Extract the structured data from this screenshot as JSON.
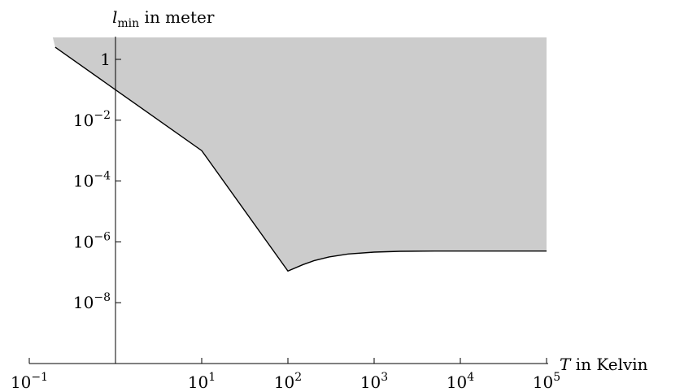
{
  "chart_data": {
    "type": "area",
    "x_scale": "log",
    "y_scale": "log",
    "xlim": [
      0.1,
      100000
    ],
    "ylim": [
      1e-10,
      3
    ],
    "x_ticks": [
      {
        "base": "10",
        "exp": "−1",
        "value": 0.1
      },
      {
        "base": "10",
        "exp": "1",
        "value": 10
      },
      {
        "base": "10",
        "exp": "2",
        "value": 100
      },
      {
        "base": "10",
        "exp": "3",
        "value": 1000
      },
      {
        "base": "10",
        "exp": "4",
        "value": 10000
      },
      {
        "base": "10",
        "exp": "5",
        "value": 100000
      }
    ],
    "y_ticks": [
      {
        "base": "1",
        "exp": "",
        "value": 1
      },
      {
        "base": "10",
        "exp": "−2",
        "value": 0.01
      },
      {
        "base": "10",
        "exp": "−4",
        "value": 0.0001
      },
      {
        "base": "10",
        "exp": "−6",
        "value": 1e-06
      },
      {
        "base": "10",
        "exp": "−8",
        "value": 1e-08
      }
    ],
    "y_axis_at_x": 1,
    "x_axis_at_y": 1e-10,
    "ylabel_var": "l",
    "ylabel_sub": "min",
    "ylabel_rest": " in meter",
    "xlabel_var": "T",
    "xlabel_rest": " in Kelvin",
    "grid": false,
    "fill_color": "#cccccc",
    "line_color": "#000000",
    "series": [
      {
        "x": [
          0.2,
          1,
          10,
          100,
          150,
          200,
          300,
          500,
          1000,
          2000,
          5000,
          10000,
          100000
        ],
        "y": [
          2.5,
          0.1,
          0.001,
          1.1e-07,
          1.8e-07,
          2.4e-07,
          3.2e-07,
          4e-07,
          4.6e-07,
          4.9e-07,
          5e-07,
          5e-07,
          5e-07
        ]
      }
    ],
    "shaded_region": "above curve"
  }
}
